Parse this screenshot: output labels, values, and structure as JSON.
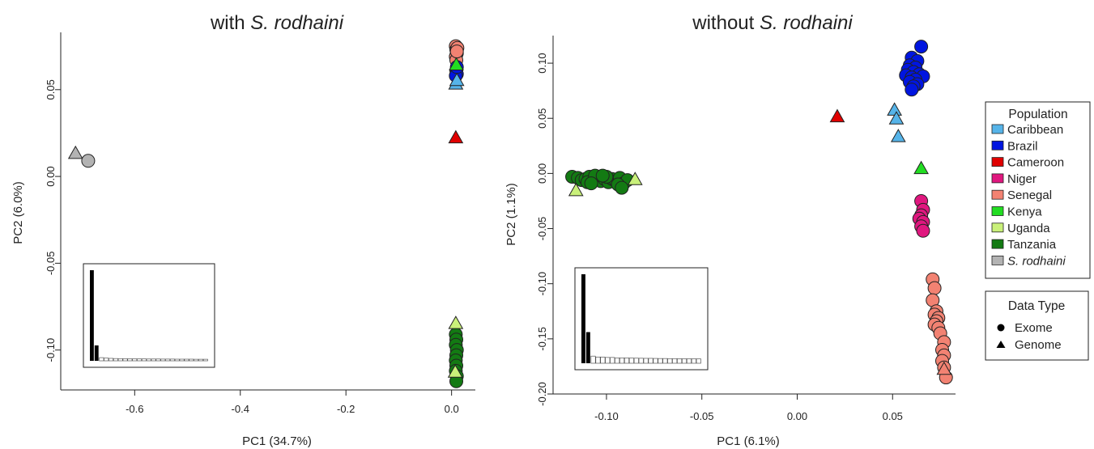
{
  "chart_data": [
    {
      "type": "scatter",
      "title": "with S. rodhaini",
      "title_prefix": "with ",
      "title_italic": "S. rodhaini",
      "xlabel": "PC1 (34.7%)",
      "ylabel": "PC2 (6.0%)",
      "xlim": [
        -0.74,
        0.045
      ],
      "ylim": [
        -0.123,
        0.083
      ],
      "x_ticks": [
        {
          "value": -0.6,
          "label": "-0.6"
        },
        {
          "value": -0.4,
          "label": "-0.4"
        },
        {
          "value": -0.2,
          "label": "-0.2"
        },
        {
          "value": 0.0,
          "label": "0.0"
        }
      ],
      "y_ticks": [
        {
          "value": 0.05,
          "label": "0.05"
        },
        {
          "value": 0.0,
          "label": "0.00"
        },
        {
          "value": -0.05,
          "label": "-0.05"
        },
        {
          "value": -0.1,
          "label": "-0.10"
        }
      ],
      "grid": false,
      "series": [
        {
          "population": "Senegal",
          "data_type": "Exome",
          "points": [
            [
              0.008,
              0.075
            ],
            [
              0.009,
              0.073
            ],
            [
              0.01,
              0.071
            ],
            [
              0.008,
              0.069
            ],
            [
              0.011,
              0.074
            ],
            [
              0.009,
              0.067
            ],
            [
              0.01,
              0.072
            ]
          ]
        },
        {
          "population": "Brazil",
          "data_type": "Exome",
          "points": [
            [
              0.009,
              0.061
            ],
            [
              0.01,
              0.059
            ],
            [
              0.008,
              0.058
            ],
            [
              0.01,
              0.063
            ]
          ]
        },
        {
          "population": "Kenya",
          "data_type": "Genome",
          "points": [
            [
              0.009,
              0.064
            ]
          ]
        },
        {
          "population": "Caribbean",
          "data_type": "Genome",
          "points": [
            [
              0.008,
              0.053
            ],
            [
              0.01,
              0.055
            ]
          ]
        },
        {
          "population": "Cameroon",
          "data_type": "Genome",
          "points": [
            [
              0.008,
              0.022
            ]
          ]
        },
        {
          "population": "S. rodhaini",
          "data_type": "Genome",
          "points": [
            [
              -0.712,
              0.013
            ]
          ]
        },
        {
          "population": "S. rodhaini",
          "data_type": "Exome",
          "points": [
            [
              -0.688,
              0.009
            ]
          ]
        },
        {
          "population": "Tanzania",
          "data_type": "Exome",
          "points": [
            [
              0.008,
              -0.091
            ],
            [
              0.009,
              -0.094
            ],
            [
              0.008,
              -0.097
            ],
            [
              0.01,
              -0.1
            ],
            [
              0.009,
              -0.103
            ],
            [
              0.008,
              -0.106
            ],
            [
              0.009,
              -0.109
            ],
            [
              0.008,
              -0.112
            ],
            [
              0.01,
              -0.115
            ],
            [
              0.009,
              -0.118
            ]
          ]
        },
        {
          "population": "Uganda",
          "data_type": "Genome",
          "points": [
            [
              0.008,
              -0.085
            ],
            [
              0.007,
              -0.113
            ]
          ]
        }
      ],
      "scree": [
        1.0,
        0.17,
        0.035,
        0.03,
        0.027,
        0.025,
        0.024,
        0.023,
        0.022,
        0.022,
        0.021,
        0.021,
        0.02,
        0.02,
        0.02,
        0.019,
        0.019,
        0.019,
        0.018,
        0.018,
        0.018,
        0.018,
        0.017,
        0.017,
        0.017
      ]
    },
    {
      "type": "scatter",
      "title": "without S. rodhaini",
      "title_prefix": "without ",
      "title_italic": "S. rodhaini",
      "xlabel": "PC1 (6.1%)",
      "ylabel": "PC2 (1.1%)",
      "xlim": [
        -0.128,
        0.083
      ],
      "ylim": [
        -0.2,
        0.125
      ],
      "x_ticks": [
        {
          "value": -0.1,
          "label": "-0.10"
        },
        {
          "value": -0.05,
          "label": "-0.05"
        },
        {
          "value": 0.0,
          "label": "0.00"
        },
        {
          "value": 0.05,
          "label": "0.05"
        }
      ],
      "y_ticks": [
        {
          "value": 0.1,
          "label": "0.10"
        },
        {
          "value": 0.05,
          "label": "0.05"
        },
        {
          "value": 0.0,
          "label": "0.00"
        },
        {
          "value": -0.05,
          "label": "-0.05"
        },
        {
          "value": -0.1,
          "label": "-0.10"
        },
        {
          "value": -0.15,
          "label": "-0.15"
        },
        {
          "value": -0.2,
          "label": "-0.20"
        }
      ],
      "grid": false,
      "series": [
        {
          "population": "Brazil",
          "data_type": "Exome",
          "points": [
            [
              0.065,
              0.115
            ],
            [
              0.06,
              0.105
            ],
            [
              0.063,
              0.102
            ],
            [
              0.059,
              0.098
            ],
            [
              0.062,
              0.096
            ],
            [
              0.058,
              0.094
            ],
            [
              0.061,
              0.092
            ],
            [
              0.064,
              0.09
            ],
            [
              0.057,
              0.089
            ],
            [
              0.06,
              0.087
            ],
            [
              0.066,
              0.088
            ],
            [
              0.062,
              0.085
            ],
            [
              0.059,
              0.083
            ],
            [
              0.063,
              0.081
            ],
            [
              0.061,
              0.079
            ],
            [
              0.06,
              0.076
            ]
          ]
        },
        {
          "population": "Caribbean",
          "data_type": "Genome",
          "points": [
            [
              0.051,
              0.057
            ],
            [
              0.052,
              0.049
            ],
            [
              0.053,
              0.033
            ]
          ]
        },
        {
          "population": "Cameroon",
          "data_type": "Genome",
          "points": [
            [
              0.021,
              0.051
            ]
          ]
        },
        {
          "population": "Kenya",
          "data_type": "Genome",
          "points": [
            [
              0.065,
              0.004
            ]
          ]
        },
        {
          "population": "Niger",
          "data_type": "Exome",
          "points": [
            [
              0.065,
              -0.025
            ],
            [
              0.066,
              -0.033
            ],
            [
              0.065,
              -0.038
            ],
            [
              0.064,
              -0.041
            ],
            [
              0.066,
              -0.044
            ],
            [
              0.065,
              -0.048
            ],
            [
              0.066,
              -0.052
            ]
          ]
        },
        {
          "population": "Senegal",
          "data_type": "Exome",
          "points": [
            [
              0.071,
              -0.096
            ],
            [
              0.072,
              -0.104
            ],
            [
              0.071,
              -0.115
            ],
            [
              0.073,
              -0.125
            ],
            [
              0.072,
              -0.128
            ],
            [
              0.074,
              -0.131
            ],
            [
              0.073,
              -0.134
            ],
            [
              0.072,
              -0.137
            ],
            [
              0.074,
              -0.14
            ],
            [
              0.075,
              -0.145
            ],
            [
              0.077,
              -0.153
            ],
            [
              0.076,
              -0.16
            ],
            [
              0.077,
              -0.165
            ],
            [
              0.076,
              -0.17
            ],
            [
              0.077,
              -0.176
            ],
            [
              0.078,
              -0.185
            ]
          ]
        },
        {
          "population": "Senegal",
          "data_type": "Genome",
          "points": [
            [
              0.077,
              -0.178
            ]
          ]
        },
        {
          "population": "Tanzania",
          "data_type": "Exome",
          "points": [
            [
              -0.118,
              -0.003
            ],
            [
              -0.115,
              -0.004
            ],
            [
              -0.113,
              -0.006
            ],
            [
              -0.111,
              -0.005
            ],
            [
              -0.109,
              -0.003
            ],
            [
              -0.107,
              -0.006
            ],
            [
              -0.105,
              -0.004
            ],
            [
              -0.103,
              -0.007
            ],
            [
              -0.101,
              -0.005
            ],
            [
              -0.099,
              -0.008
            ],
            [
              -0.097,
              -0.005
            ],
            [
              -0.095,
              -0.007
            ],
            [
              -0.093,
              -0.004
            ],
            [
              -0.091,
              -0.009
            ],
            [
              -0.089,
              -0.006
            ],
            [
              -0.11,
              -0.008
            ],
            [
              -0.106,
              -0.002
            ],
            [
              -0.1,
              -0.003
            ],
            [
              -0.094,
              -0.01
            ],
            [
              -0.092,
              -0.013
            ],
            [
              -0.108,
              -0.009
            ],
            [
              -0.102,
              -0.002
            ]
          ]
        },
        {
          "population": "Uganda",
          "data_type": "Genome",
          "points": [
            [
              -0.116,
              -0.016
            ],
            [
              -0.085,
              -0.006
            ]
          ]
        }
      ],
      "scree": [
        1.0,
        0.35,
        0.08,
        0.07,
        0.07,
        0.065,
        0.065,
        0.06,
        0.06,
        0.06,
        0.058,
        0.057,
        0.056,
        0.055,
        0.055,
        0.054,
        0.053,
        0.053,
        0.052,
        0.052,
        0.051,
        0.05,
        0.05,
        0.05,
        0.049
      ]
    }
  ],
  "legend": {
    "population_title": "Population",
    "populations": [
      {
        "name": "Caribbean",
        "color": "#56B4E9",
        "italic": false
      },
      {
        "name": "Brazil",
        "color": "#0015E0",
        "italic": false
      },
      {
        "name": "Cameroon",
        "color": "#E00000",
        "italic": false
      },
      {
        "name": "Niger",
        "color": "#E0177F",
        "italic": false
      },
      {
        "name": "Senegal",
        "color": "#F28272",
        "italic": false
      },
      {
        "name": "Kenya",
        "color": "#22DD22",
        "italic": false
      },
      {
        "name": "Uganda",
        "color": "#C9F07A",
        "italic": false
      },
      {
        "name": "Tanzania",
        "color": "#137A13",
        "italic": false
      },
      {
        "name": "S. rodhaini",
        "color": "#B3B3B3",
        "italic": true
      }
    ],
    "datatype_title": "Data Type",
    "datatypes": [
      {
        "name": "Exome",
        "shape": "circle"
      },
      {
        "name": "Genome",
        "shape": "triangle"
      }
    ]
  }
}
